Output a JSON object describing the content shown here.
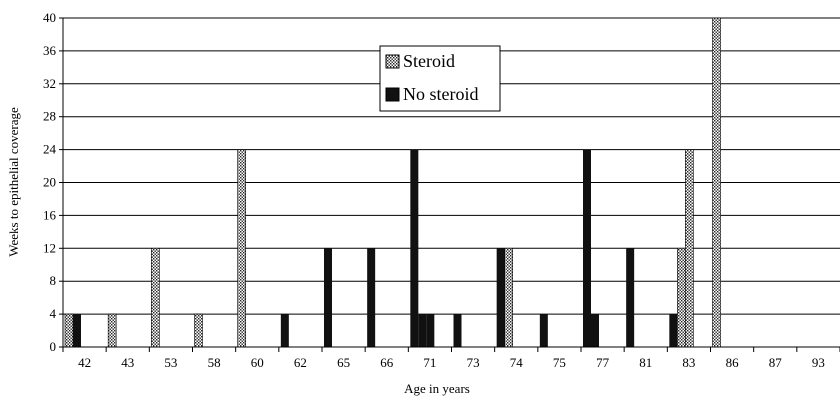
{
  "chart_data": {
    "type": "bar",
    "xlabel": "Age in years",
    "ylabel": "Weeks to epithelial coverage",
    "ylim": [
      0,
      40
    ],
    "yticks": [
      0,
      4,
      8,
      12,
      16,
      20,
      24,
      28,
      32,
      36,
      40
    ],
    "grid": "horizontal",
    "legend_position": "top-center",
    "categories": [
      "42",
      "43",
      "53",
      "58",
      "60",
      "62",
      "65",
      "66",
      "71",
      "73",
      "74",
      "75",
      "77",
      "81",
      "83",
      "86",
      "87",
      "93"
    ],
    "series": [
      {
        "name": "Steroid",
        "pattern": "dotted",
        "color": "#ffffff",
        "values": [
          [
            4
          ],
          [
            4
          ],
          [
            12
          ],
          [
            4
          ],
          [
            24
          ],
          [],
          [],
          [],
          [],
          [],
          [
            12
          ],
          [],
          [],
          [],
          [
            12,
            24
          ],
          [
            40
          ],
          [],
          []
        ]
      },
      {
        "name": "No steroid",
        "pattern": "solid",
        "color": "#111111",
        "values": [
          [
            4
          ],
          [],
          [],
          [],
          [],
          [
            4
          ],
          [
            12
          ],
          [
            12
          ],
          [
            24,
            4,
            4
          ],
          [
            4
          ],
          [
            12
          ],
          [
            4
          ],
          [
            24,
            4
          ],
          [
            12
          ],
          [
            4
          ],
          [],
          [],
          []
        ]
      }
    ]
  }
}
